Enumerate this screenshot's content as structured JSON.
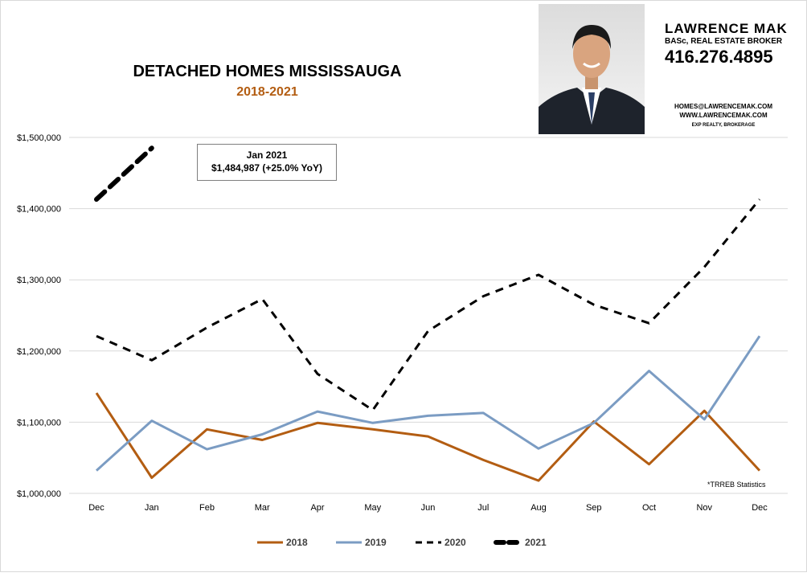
{
  "agent": {
    "name": "LAWRENCE MAK",
    "title": "BASc, REAL ESTATE BROKER",
    "phone": "416.276.4895",
    "email": "HOMES@LAWRENCEMAK.COM",
    "website": "WWW.LAWRENCEMAK.COM",
    "brokerage": "EXP REALTY, BROKERAGE"
  },
  "callout": {
    "line1": "Jan 2021",
    "line2": "$1,484,987  (+25.0%  YoY)"
  },
  "source_note": "*TRREB Statistics",
  "colors": {
    "2018": "#b35d12",
    "2019": "#7b9cc3",
    "2020": "#000000",
    "2021": "#000000",
    "subtitle": "#b35d12",
    "grid": "#d9d9d9"
  },
  "chart_data": {
    "type": "line",
    "title": "DETACHED HOMES MISSISSAUGA",
    "subtitle": "2018-2021",
    "categories": [
      "Dec",
      "Jan",
      "Feb",
      "Mar",
      "Apr",
      "May",
      "Jun",
      "Jul",
      "Aug",
      "Sep",
      "Oct",
      "Nov",
      "Dec"
    ],
    "ylim": [
      1000000,
      1500000
    ],
    "yticks": [
      1000000,
      1100000,
      1200000,
      1300000,
      1400000,
      1500000
    ],
    "ytick_labels": [
      "$1,000,000",
      "$1,100,000",
      "$1,200,000",
      "$1,300,000",
      "$1,400,000",
      "$1,500,000"
    ],
    "grid": true,
    "legend_position": "bottom",
    "series": [
      {
        "name": "2018",
        "style": "solid",
        "values": [
          1141000,
          1022000,
          1090000,
          1075000,
          1099000,
          1090000,
          1080000,
          1047000,
          1018000,
          1101000,
          1041000,
          1116000,
          1032000
        ]
      },
      {
        "name": "2019",
        "style": "solid",
        "values": [
          1032000,
          1102000,
          1062000,
          1083000,
          1115000,
          1099000,
          1109000,
          1113000,
          1063000,
          1099000,
          1172000,
          1104000,
          1221000
        ]
      },
      {
        "name": "2020",
        "style": "dashed",
        "values": [
          1221000,
          1187000,
          1233000,
          1273000,
          1168000,
          1117000,
          1228000,
          1277000,
          1307000,
          1265000,
          1239000,
          1318000,
          1413000
        ]
      },
      {
        "name": "2021",
        "style": "bold-dashed",
        "values": [
          1413000,
          1484987,
          null,
          null,
          null,
          null,
          null,
          null,
          null,
          null,
          null,
          null,
          null
        ]
      }
    ]
  }
}
